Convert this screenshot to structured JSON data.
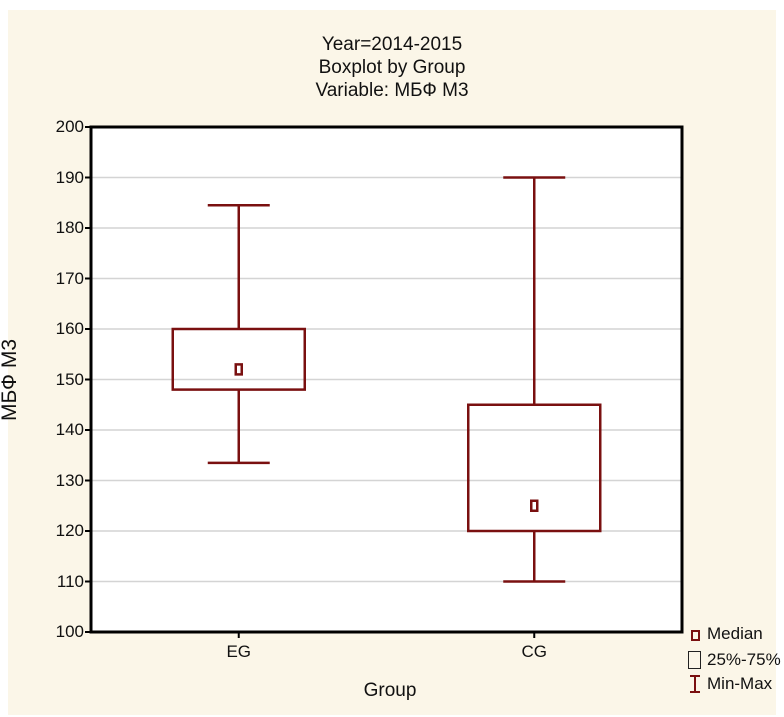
{
  "colors": {
    "panel": "#fbf6e8",
    "plot_bg": "#ffffff",
    "box": "#7a1010",
    "grid": "#d4d4d4",
    "axis": "#000000"
  },
  "title": {
    "line1": "Year=2014-2015",
    "line2": "Boxplot by Group",
    "line3": "Variable: МБФ М3"
  },
  "chart_data": {
    "type": "boxplot",
    "title": "Boxplot by Group",
    "subtitle": "Variable: МБФ М3",
    "xlabel": "Group",
    "ylabel": "МБФ М3",
    "ylim": [
      100,
      200
    ],
    "yticks": [
      100,
      110,
      120,
      130,
      140,
      150,
      160,
      170,
      180,
      190,
      200
    ],
    "grid": true,
    "legend_placement": "bottom-right",
    "categories": [
      "EG",
      "CG"
    ],
    "series": [
      {
        "group": "EG",
        "min": 133.5,
        "q1": 148,
        "median": 152,
        "q3": 160,
        "max": 184.5
      },
      {
        "group": "CG",
        "min": 110,
        "q1": 120,
        "median": 125,
        "q3": 145,
        "max": 190
      }
    ]
  },
  "legend": {
    "median": "Median",
    "iqr": "25%-75%",
    "range": "Min-Max"
  }
}
